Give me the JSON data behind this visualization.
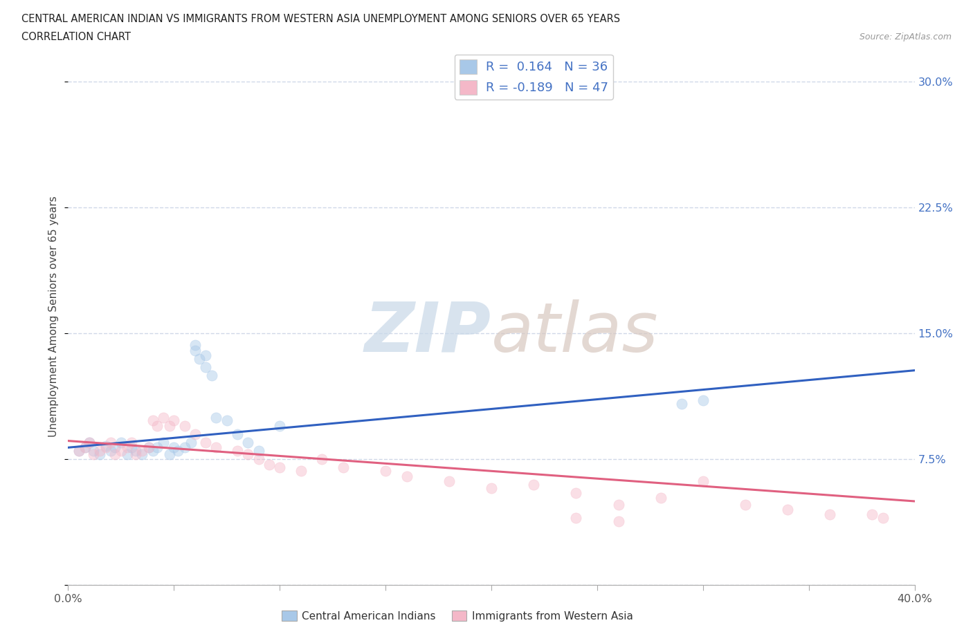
{
  "title_line1": "CENTRAL AMERICAN INDIAN VS IMMIGRANTS FROM WESTERN ASIA UNEMPLOYMENT AMONG SENIORS OVER 65 YEARS",
  "title_line2": "CORRELATION CHART",
  "source_text": "Source: ZipAtlas.com",
  "ylabel": "Unemployment Among Seniors over 65 years",
  "xmin": 0.0,
  "xmax": 0.4,
  "ymin": 0.0,
  "ymax": 0.32,
  "yticks": [
    0.0,
    0.075,
    0.15,
    0.225,
    0.3
  ],
  "ytick_labels": [
    "",
    "7.5%",
    "15.0%",
    "22.5%",
    "30.0%"
  ],
  "xtick_vals": [
    0.0,
    0.05,
    0.1,
    0.15,
    0.2,
    0.25,
    0.3,
    0.35,
    0.4
  ],
  "xtick_labels_show": [
    "0.0%",
    "",
    "",
    "",
    "",
    "",
    "",
    "",
    "40.0%"
  ],
  "blue_R": "0.164",
  "blue_N": "36",
  "pink_R": "-0.189",
  "pink_N": "47",
  "blue_color": "#a8c8e8",
  "pink_color": "#f4b8c8",
  "blue_line_color": "#3060c0",
  "pink_line_color": "#e06080",
  "legend_label_blue": "Central American Indians",
  "legend_label_pink": "Immigrants from Western Asia",
  "blue_scatter_x": [
    0.005,
    0.008,
    0.01,
    0.012,
    0.015,
    0.018,
    0.02,
    0.022,
    0.025,
    0.028,
    0.03,
    0.032,
    0.035,
    0.038,
    0.04,
    0.042,
    0.045,
    0.048,
    0.05,
    0.052,
    0.055,
    0.058,
    0.06,
    0.062,
    0.065,
    0.068,
    0.07,
    0.075,
    0.08,
    0.085,
    0.09,
    0.1,
    0.06,
    0.065,
    0.29,
    0.3
  ],
  "blue_scatter_y": [
    0.08,
    0.082,
    0.085,
    0.08,
    0.078,
    0.083,
    0.08,
    0.082,
    0.085,
    0.078,
    0.082,
    0.08,
    0.078,
    0.082,
    0.08,
    0.082,
    0.085,
    0.078,
    0.082,
    0.08,
    0.082,
    0.085,
    0.14,
    0.135,
    0.13,
    0.125,
    0.1,
    0.098,
    0.09,
    0.085,
    0.08,
    0.095,
    0.143,
    0.137,
    0.108,
    0.11
  ],
  "pink_scatter_x": [
    0.005,
    0.008,
    0.01,
    0.012,
    0.015,
    0.018,
    0.02,
    0.022,
    0.025,
    0.028,
    0.03,
    0.032,
    0.035,
    0.038,
    0.04,
    0.042,
    0.045,
    0.048,
    0.05,
    0.055,
    0.06,
    0.065,
    0.07,
    0.08,
    0.085,
    0.09,
    0.095,
    0.1,
    0.11,
    0.12,
    0.13,
    0.15,
    0.16,
    0.18,
    0.2,
    0.22,
    0.24,
    0.26,
    0.28,
    0.3,
    0.32,
    0.34,
    0.36,
    0.38,
    0.385,
    0.24,
    0.26
  ],
  "pink_scatter_y": [
    0.08,
    0.082,
    0.085,
    0.078,
    0.08,
    0.082,
    0.085,
    0.078,
    0.08,
    0.082,
    0.085,
    0.078,
    0.08,
    0.082,
    0.098,
    0.095,
    0.1,
    0.095,
    0.098,
    0.095,
    0.09,
    0.085,
    0.082,
    0.08,
    0.078,
    0.075,
    0.072,
    0.07,
    0.068,
    0.075,
    0.07,
    0.068,
    0.065,
    0.062,
    0.058,
    0.06,
    0.055,
    0.048,
    0.052,
    0.062,
    0.048,
    0.045,
    0.042,
    0.042,
    0.04,
    0.04,
    0.038
  ],
  "blue_trend_x": [
    0.0,
    0.4
  ],
  "blue_trend_y": [
    0.082,
    0.128
  ],
  "pink_trend_x": [
    0.0,
    0.4
  ],
  "pink_trend_y": [
    0.086,
    0.05
  ],
  "grid_color": "#d0d8e8",
  "bg_color": "#ffffff",
  "title_color": "#222222",
  "axis_label_color": "#444444",
  "right_tick_color": "#4472c4",
  "scatter_size": 120,
  "scatter_alpha": 0.45,
  "watermark_zip_color": "#c8d8e8",
  "watermark_atlas_color": "#d8c8c0"
}
